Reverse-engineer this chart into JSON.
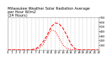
{
  "title": "Milwaukee Weather Solar Radiation Average\nper Hour W/m2\n(24 Hours)",
  "title_fontsize": 3.8,
  "hours": [
    0,
    1,
    2,
    3,
    4,
    5,
    6,
    7,
    8,
    9,
    10,
    11,
    12,
    13,
    14,
    15,
    16,
    17,
    18,
    19,
    20,
    21,
    22,
    23
  ],
  "series1": [
    0,
    0,
    0,
    0,
    0,
    0,
    0,
    5,
    40,
    120,
    280,
    430,
    400,
    250,
    100,
    30,
    5,
    0,
    0,
    0,
    0,
    0,
    0,
    0
  ],
  "series2": [
    0,
    0,
    0,
    0,
    0,
    0,
    5,
    20,
    80,
    180,
    320,
    500,
    580,
    560,
    460,
    300,
    120,
    25,
    3,
    0,
    0,
    0,
    0,
    0
  ],
  "line_color": "#ff0000",
  "line_width": 0.8,
  "bg_color": "#ffffff",
  "plot_bg_color": "#ffffff",
  "grid_color": "#999999",
  "ylim": [
    0,
    700
  ],
  "ytick_values": [
    100,
    200,
    300,
    400,
    500,
    600,
    700
  ],
  "tick_fontsize": 2.8,
  "figsize": [
    1.6,
    0.87
  ],
  "dpi": 100
}
